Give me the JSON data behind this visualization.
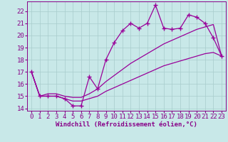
{
  "title": "",
  "xlabel": "Windchill (Refroidissement éolien,°C)",
  "ylabel": "",
  "x_values": [
    0,
    1,
    2,
    3,
    4,
    5,
    6,
    7,
    8,
    9,
    10,
    11,
    12,
    13,
    14,
    15,
    16,
    17,
    18,
    19,
    20,
    21,
    22,
    23
  ],
  "line_data": [
    17.0,
    15.0,
    15.0,
    15.0,
    14.8,
    14.2,
    14.2,
    16.6,
    15.6,
    18.0,
    19.4,
    20.4,
    21.0,
    20.6,
    21.0,
    22.5,
    20.6,
    20.5,
    20.6,
    21.7,
    21.5,
    21.0,
    19.8,
    18.3
  ],
  "line_upper": [
    17.0,
    15.0,
    15.2,
    15.2,
    15.0,
    14.9,
    14.9,
    15.2,
    15.6,
    16.2,
    16.7,
    17.2,
    17.7,
    18.1,
    18.5,
    18.9,
    19.3,
    19.6,
    19.9,
    20.2,
    20.5,
    20.7,
    20.9,
    18.3
  ],
  "line_lower": [
    17.0,
    15.0,
    15.0,
    15.0,
    14.8,
    14.6,
    14.6,
    14.8,
    15.0,
    15.4,
    15.7,
    16.0,
    16.3,
    16.6,
    16.9,
    17.2,
    17.5,
    17.7,
    17.9,
    18.1,
    18.3,
    18.5,
    18.6,
    18.3
  ],
  "line_color": "#990099",
  "marker": "+",
  "bg_color": "#c8e8e8",
  "grid_color": "#a8cccc",
  "text_color": "#880088",
  "xlim": [
    -0.5,
    23.5
  ],
  "ylim": [
    13.8,
    22.8
  ],
  "yticks": [
    14,
    15,
    16,
    17,
    18,
    19,
    20,
    21,
    22
  ],
  "xticks": [
    0,
    1,
    2,
    3,
    4,
    5,
    6,
    7,
    8,
    9,
    10,
    11,
    12,
    13,
    14,
    15,
    16,
    17,
    18,
    19,
    20,
    21,
    22,
    23
  ],
  "fontsize": 6.5
}
